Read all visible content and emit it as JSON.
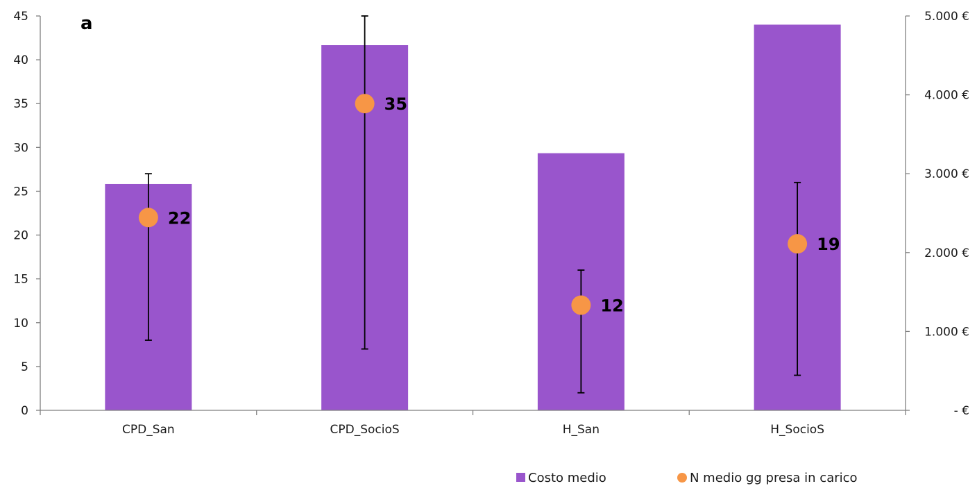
{
  "chart_data": {
    "type": "bar",
    "panel_label": "a",
    "categories": [
      "CPD_San",
      "CPD_SocioS",
      "H_San",
      "H_SocioS"
    ],
    "series": [
      {
        "name": "Costo medio",
        "kind": "bar",
        "axis": "right",
        "color": "#9955cc",
        "values": [
          2870,
          4630,
          3260,
          4890
        ]
      },
      {
        "name": "N medio gg presa in carico",
        "kind": "scatter",
        "axis": "left",
        "color": "#f79646",
        "values": [
          22,
          35,
          12,
          19
        ],
        "error_low": [
          8,
          7,
          2,
          4
        ],
        "error_high": [
          27,
          45,
          16,
          26
        ],
        "data_labels": [
          "22",
          "35",
          "12",
          "19"
        ]
      }
    ],
    "left_axis": {
      "ylim": [
        0,
        45
      ],
      "ticks": [
        0,
        5,
        10,
        15,
        20,
        25,
        30,
        35,
        40,
        45
      ],
      "tick_labels": [
        "0",
        "5",
        "10",
        "15",
        "20",
        "25",
        "30",
        "35",
        "40",
        "45"
      ]
    },
    "right_axis": {
      "ylim": [
        0,
        5000
      ],
      "ticks": [
        0,
        1000,
        2000,
        3000,
        4000,
        5000
      ],
      "tick_labels": [
        "-  €",
        "1.000 €",
        "2.000 €",
        "3.000 €",
        "4.000 €",
        "5.000 €"
      ]
    },
    "grid": false,
    "legend": {
      "position": "bottom-right",
      "entries": [
        "Costo medio",
        "N medio gg presa in carico"
      ]
    }
  }
}
